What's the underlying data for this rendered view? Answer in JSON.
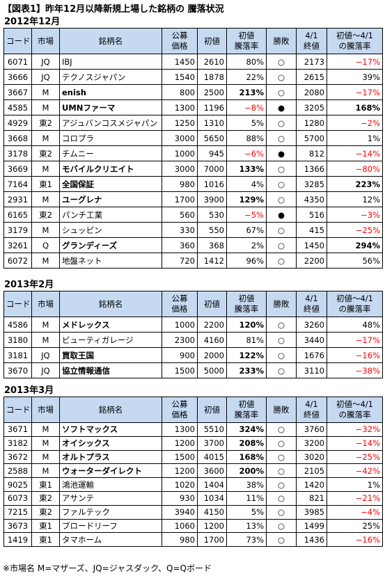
{
  "title": "【図表1】昨年12月以降新規上場した銘柄の 騰落状況",
  "header": [
    [
      "コード"
    ],
    [
      "市場"
    ],
    [
      "銘柄名"
    ],
    [
      "公募",
      "価格"
    ],
    [
      "初値"
    ],
    [
      "初値",
      "騰落率"
    ],
    [
      "勝敗"
    ],
    [
      "4/1",
      "終値"
    ],
    [
      "初値〜4/1",
      "の騰落率"
    ]
  ],
  "sections": [
    {
      "label": "2012年12月",
      "rows": [
        [
          "6071",
          "JQ",
          "IBJ",
          "1450",
          "2610",
          "80%",
          "○",
          "2173",
          "−17%"
        ],
        [
          "3666",
          "JQ",
          "テクノスジャパン",
          "1540",
          "1878",
          "22%",
          "○",
          "2615",
          "39%"
        ],
        [
          "3667",
          "M",
          "enish",
          "800",
          "2500",
          "213%",
          "○",
          "2080",
          "−17%"
        ],
        [
          "4585",
          "M",
          "UMNファーマ",
          "1300",
          "1196",
          "−8%",
          "●",
          "3205",
          "168%"
        ],
        [
          "4929",
          "東2",
          "アジュバンコスメジャパン",
          "1250",
          "1310",
          "5%",
          "○",
          "1280",
          "−2%"
        ],
        [
          "3668",
          "M",
          "コロプラ",
          "3000",
          "5650",
          "88%",
          "○",
          "5700",
          "1%"
        ],
        [
          "3178",
          "東2",
          "チムニー",
          "1000",
          "945",
          "−6%",
          "●",
          "812",
          "−14%"
        ],
        [
          "3669",
          "M",
          "モバイルクリエイト",
          "3000",
          "7000",
          "133%",
          "○",
          "1366",
          "−80%"
        ],
        [
          "7164",
          "東1",
          "全国保証",
          "980",
          "1016",
          "4%",
          "○",
          "3285",
          "223%"
        ],
        [
          "2931",
          "M",
          "ユーグレナ",
          "1700",
          "3900",
          "129%",
          "○",
          "4350",
          "12%"
        ],
        [
          "6165",
          "東2",
          "パンチ工業",
          "560",
          "530",
          "−5%",
          "●",
          "516",
          "−3%"
        ],
        [
          "3179",
          "M",
          "シュッピン",
          "330",
          "550",
          "67%",
          "○",
          "415",
          "−25%"
        ],
        [
          "3261",
          "Q",
          "グランディーズ",
          "360",
          "368",
          "2%",
          "○",
          "1450",
          "294%"
        ],
        [
          "6072",
          "M",
          "地盤ネット",
          "720",
          "1412",
          "96%",
          "○",
          "2200",
          "56%"
        ]
      ]
    },
    {
      "label": "2013年2月",
      "rows": [
        [
          "4586",
          "M",
          "メドレックス",
          "1000",
          "2200",
          "120%",
          "○",
          "3260",
          "48%"
        ],
        [
          "3180",
          "M",
          "ビューティガレージ",
          "2300",
          "4160",
          "81%",
          "○",
          "3440",
          "−17%"
        ],
        [
          "3181",
          "JQ",
          "買取王国",
          "900",
          "2000",
          "122%",
          "○",
          "1676",
          "−16%"
        ],
        [
          "3670",
          "JQ",
          "協立情報通信",
          "1500",
          "5000",
          "233%",
          "○",
          "3110",
          "−38%"
        ]
      ]
    },
    {
      "label": "2013年3月",
      "rows": [
        [
          "3671",
          "M",
          "ソフトマックス",
          "1300",
          "5510",
          "324%",
          "○",
          "3760",
          "−32%"
        ],
        [
          "3182",
          "M",
          "オイシックス",
          "1200",
          "3700",
          "208%",
          "○",
          "3200",
          "−14%"
        ],
        [
          "3672",
          "M",
          "オルトプラス",
          "1500",
          "4015",
          "168%",
          "○",
          "3020",
          "−25%"
        ],
        [
          "2588",
          "M",
          "ウォーターダイレクト",
          "1200",
          "3600",
          "200%",
          "○",
          "2105",
          "−42%"
        ],
        [
          "9025",
          "東1",
          "鴻池運輸",
          "1020",
          "1404",
          "38%",
          "○",
          "1420",
          "1%"
        ],
        [
          "6073",
          "東2",
          "アサンテ",
          "930",
          "1034",
          "11%",
          "○",
          "821",
          "−21%"
        ],
        [
          "7215",
          "東2",
          "ファルテック",
          "3940",
          "4150",
          "5%",
          "○",
          "3985",
          "−4%"
        ],
        [
          "3673",
          "東1",
          "ブロードリーフ",
          "1060",
          "1200",
          "13%",
          "○",
          "1499",
          "25%"
        ],
        [
          "1419",
          "東1",
          "タマホーム",
          "980",
          "1700",
          "73%",
          "○",
          "1436",
          "−16%"
        ]
      ]
    }
  ],
  "note": "※市場名 M=マザーズ、JQ=ジャスダック、Q=Qボード"
}
